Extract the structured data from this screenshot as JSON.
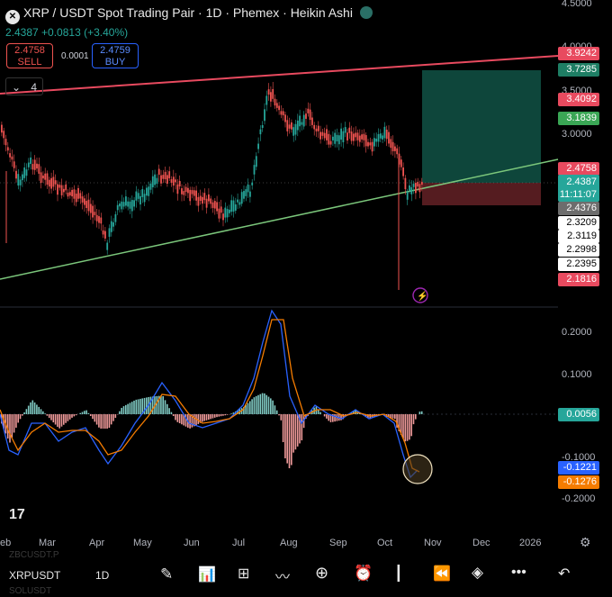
{
  "header": {
    "title": "XRP / USDT Spot Trading Pair · 1D · Phemex · Heikin Ashi",
    "price_change": "2.4387 +0.0813 (+3.40%)",
    "sell_price": "2.4758",
    "sell_label": "SELL",
    "buy_price": "2.4759",
    "buy_label": "BUY",
    "spread": "0.0001",
    "indicators_count": "4"
  },
  "price_axis": {
    "ticks": [
      "4.5000",
      "4.0000",
      "3.5000",
      "3.0000"
    ],
    "labels": {
      "red_line": "3.9242",
      "tp_top": "3.7285",
      "red_2": "3.4092",
      "green_1": "3.1839",
      "sell_red": "2.4758",
      "current": "2.4387",
      "countdown": "11:11:07",
      "gray": "2.4376",
      "w1": "2.3209",
      "w2": "2.3119",
      "w3": "2.2998",
      "w4": "2.2395",
      "low": "2.1816"
    },
    "colors": {
      "red": "#e84a5f",
      "green": "#26a69a",
      "teal": "#1e7e64",
      "blue": "#2962ff",
      "orange": "#f57c00"
    }
  },
  "indicator_axis": {
    "ticks": [
      "0.2000",
      "0.1000",
      "-0.1000",
      "-0.2000"
    ],
    "current": "0.0056",
    "macd": "-0.1221",
    "signal": "-0.1276"
  },
  "time_axis": [
    "eb",
    "Mar",
    "Apr",
    "May",
    "Jun",
    "Jul",
    "Aug",
    "Sep",
    "Oct",
    "Nov",
    "Dec",
    "2026"
  ],
  "toolbar": {
    "symbol": "XRPUSDT",
    "interval": "1D",
    "ghost_1": "ZBCUSDT.P",
    "ghost_2": "SOLUSDT"
  },
  "tv_logo": "17",
  "icons": [
    "settings-icon",
    "draw-icon",
    "chart-type-icon",
    "layout-grid-icon",
    "indicators-icon",
    "add-icon",
    "alert-icon",
    "bar-replay-icon",
    "rewind-icon",
    "layers-icon",
    "more-icon",
    "undo-icon"
  ]
}
